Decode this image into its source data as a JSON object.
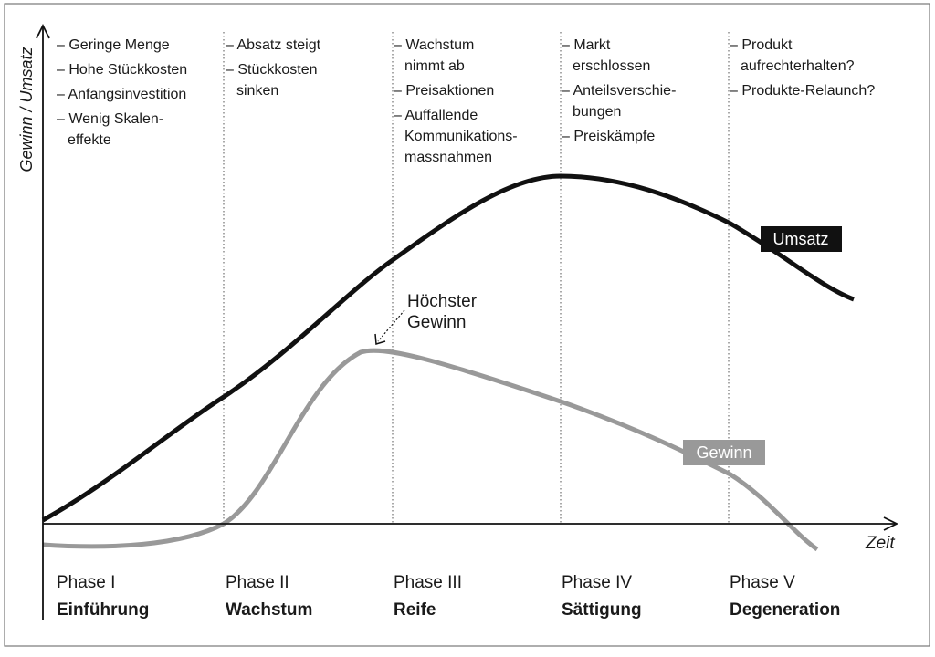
{
  "axes": {
    "y_label": "Gewinn / Umsatz",
    "x_label": "Zeit"
  },
  "curves": {
    "revenue_label": "Umsatz",
    "profit_label": "Gewinn"
  },
  "annotation": {
    "lines": [
      "Höchster",
      "Gewinn"
    ]
  },
  "phases": [
    {
      "label": "Phase I",
      "name": "Einführung",
      "items": [
        [
          "– Geringe Menge"
        ],
        [
          "– Hohe Stückkosten"
        ],
        [
          "– Anfangsinvestition"
        ],
        [
          "– Wenig Skalen-",
          "effekte"
        ]
      ]
    },
    {
      "label": "Phase II",
      "name": "Wachstum",
      "items": [
        [
          "– Absatz steigt"
        ],
        [
          "– Stückkosten",
          "sinken"
        ]
      ]
    },
    {
      "label": "Phase III",
      "name": "Reife",
      "items": [
        [
          "– Wachstum",
          "nimmt ab"
        ],
        [
          "– Preisaktionen"
        ],
        [
          "– Auffallende",
          "Kommunikations-",
          "massnahmen"
        ]
      ]
    },
    {
      "label": "Phase IV",
      "name": "Sättigung",
      "items": [
        [
          "– Markt",
          "erschlossen"
        ],
        [
          "– Anteilsverschie-",
          "bungen"
        ],
        [
          "– Preiskämpfe"
        ]
      ]
    },
    {
      "label": "Phase V",
      "name": "Degeneration",
      "items": [
        [
          "– Produkt",
          "aufrechterhalten?"
        ],
        [
          "– Produkte-Relaunch?"
        ]
      ]
    }
  ]
}
